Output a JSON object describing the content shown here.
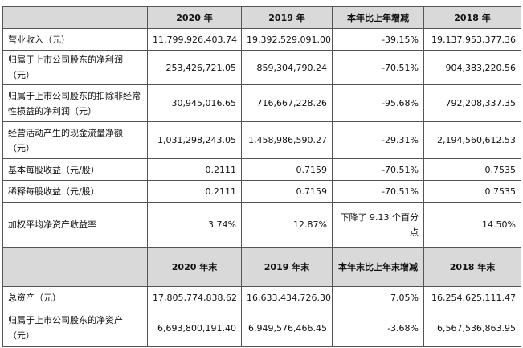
{
  "table": {
    "header": [
      "2020 年",
      "2019 年",
      "本年比上年增减",
      "2018 年"
    ],
    "rows": [
      [
        "营业收入（元）",
        "11,799,926,403.74",
        "19,392,529,091.00",
        "-39.15%",
        "19,137,953,377.36"
      ],
      [
        "归属于上市公司股东的净利润（元）",
        "253,426,721.05",
        "859,304,790.24",
        "-70.51%",
        "904,383,220.56"
      ],
      [
        "归属于上市公司股东的扣除非经常性损益的净利润（元）",
        "30,945,016.65",
        "716,667,228.26",
        "-95.68%",
        "792,208,337.35"
      ],
      [
        "经营活动产生的现金流量净额（元）",
        "1,031,298,243.05",
        "1,458,986,590.27",
        "-29.31%",
        "2,194,560,612.53"
      ],
      [
        "基本每股收益（元/股）",
        "0.2111",
        "0.7159",
        "-70.51%",
        "0.7535"
      ],
      [
        "稀释每股收益（元/股）",
        "0.2111",
        "0.7159",
        "-70.51%",
        "0.7535"
      ],
      [
        "加权平均净资产收益率",
        "3.74%",
        "12.87%",
        "下降了 9.13 个百分点",
        "14.50%"
      ]
    ],
    "header2": [
      "2020 年末",
      "2019 年末",
      "本年末比上年末增减",
      "2018 年末"
    ],
    "rows2": [
      [
        "总资产（元）",
        "17,805,774,838.62",
        "16,633,434,726.30",
        "7.05%",
        "16,254,625,111.47"
      ],
      [
        "归属于上市公司股东的净资产（元）",
        "6,693,800,191.40",
        "6,949,576,466.45",
        "-3.68%",
        "6,567,536,863.95"
      ]
    ]
  }
}
